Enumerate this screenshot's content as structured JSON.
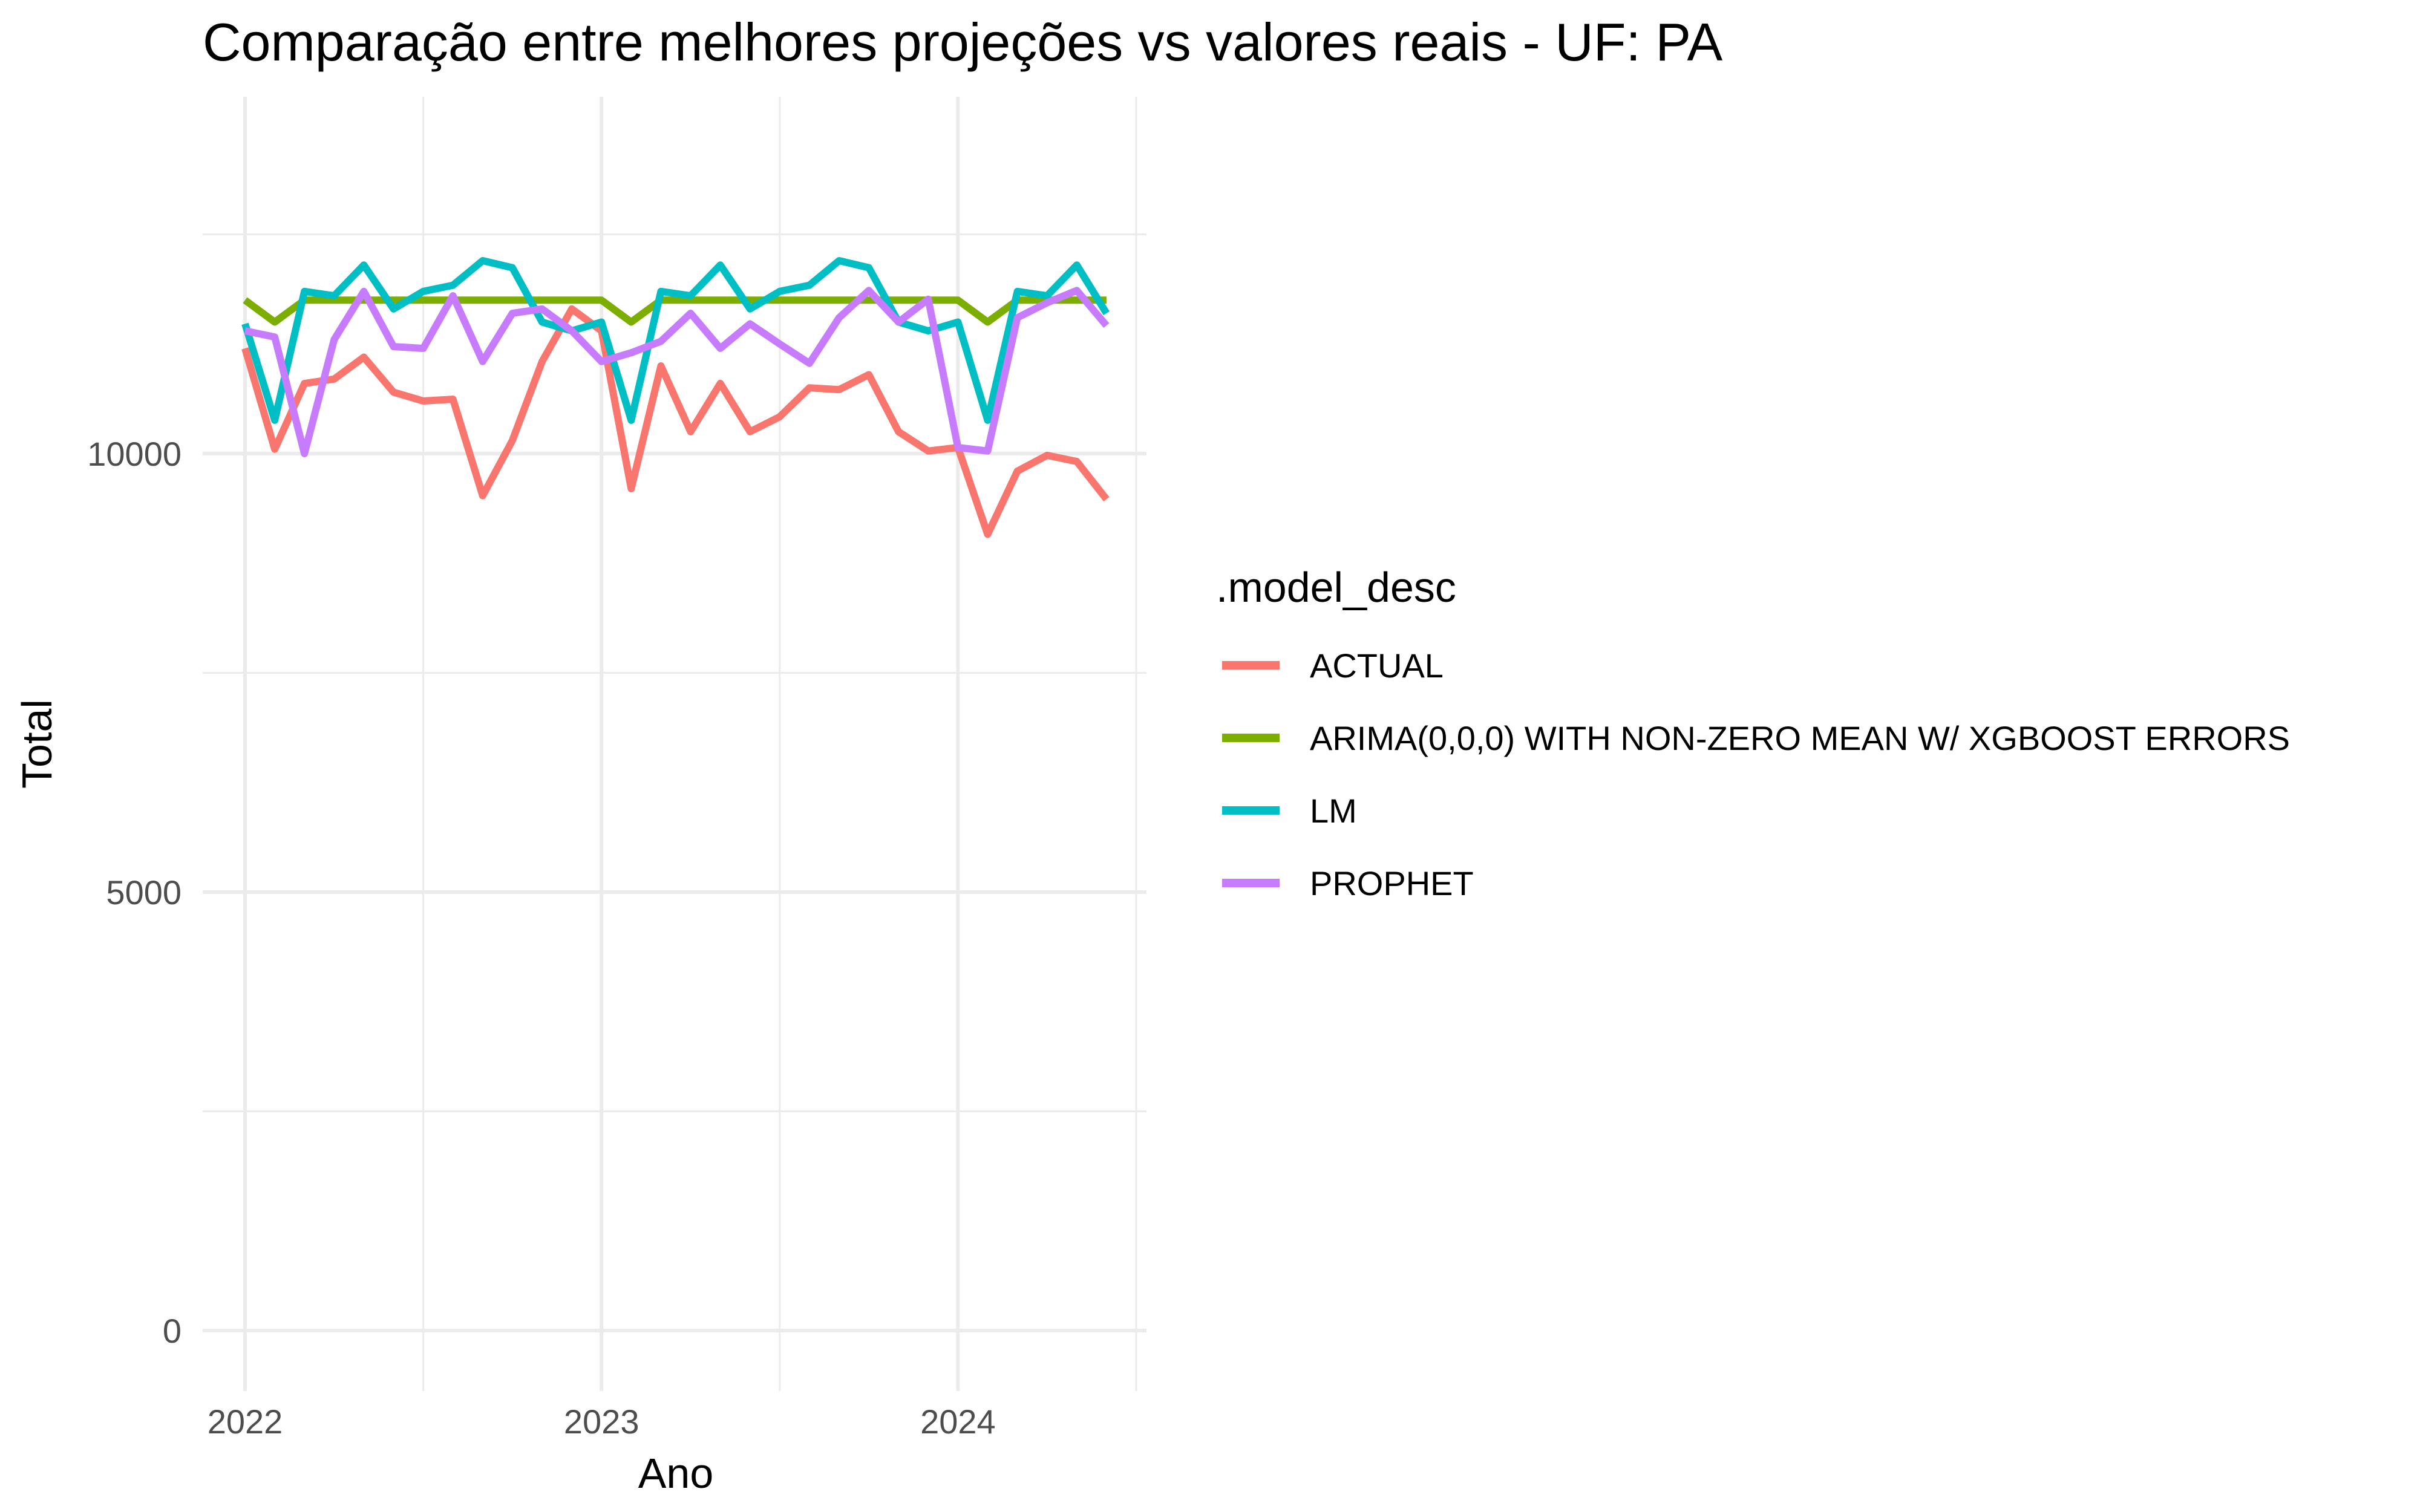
{
  "chart_data": {
    "type": "line",
    "title": "Comparação entre melhores projeções vs valores reais - UF: PA",
    "xlabel": "Ano",
    "ylabel": "Total",
    "x_ticks": [
      "2022",
      "2023",
      "2024"
    ],
    "y_ticks": [
      0,
      5000,
      10000
    ],
    "ylim": [
      -500,
      14000
    ],
    "grid": true,
    "legend": {
      "title": ".model_desc",
      "position": "right"
    },
    "x": [
      "2022-01",
      "2022-02",
      "2022-03",
      "2022-04",
      "2022-05",
      "2022-06",
      "2022-07",
      "2022-08",
      "2022-09",
      "2022-10",
      "2022-11",
      "2022-12",
      "2023-01",
      "2023-02",
      "2023-03",
      "2023-04",
      "2023-05",
      "2023-06",
      "2023-07",
      "2023-08",
      "2023-09",
      "2023-10",
      "2023-11",
      "2023-12",
      "2024-01",
      "2024-02",
      "2024-03",
      "2024-04",
      "2024-05",
      "2024-06"
    ],
    "series": [
      {
        "name": "ACTUAL",
        "color": "#F8766D",
        "values": [
          11200,
          10050,
          10800,
          10850,
          11100,
          10700,
          10600,
          10620,
          9520,
          10150,
          11050,
          11650,
          11400,
          9600,
          11000,
          10250,
          10800,
          10250,
          10420,
          10750,
          10730,
          10900,
          10250,
          10030,
          10070,
          9080,
          9800,
          9980,
          9910,
          9480
        ]
      },
      {
        "name": "ARIMA(0,0,0) WITH NON-ZERO MEAN W/ XGBOOST ERRORS",
        "color": "#7CAE00",
        "values": [
          11750,
          11500,
          11750,
          11750,
          11750,
          11750,
          11750,
          11750,
          11750,
          11750,
          11750,
          11750,
          11750,
          11500,
          11750,
          11750,
          11750,
          11750,
          11750,
          11750,
          11750,
          11750,
          11750,
          11750,
          11750,
          11500,
          11750,
          11750,
          11750,
          11750
        ]
      },
      {
        "name": "LM",
        "color": "#00BFC4",
        "values": [
          11480,
          10380,
          11850,
          11800,
          12150,
          11650,
          11850,
          11920,
          12200,
          12120,
          11500,
          11400,
          11500,
          10380,
          11850,
          11800,
          12150,
          11650,
          11850,
          11920,
          12200,
          12120,
          11500,
          11400,
          11500,
          10380,
          11850,
          11800,
          12150,
          11600
        ]
      },
      {
        "name": "PROPHET",
        "color": "#C77CFF",
        "values": [
          11400,
          11330,
          10000,
          11300,
          11850,
          11220,
          11200,
          11800,
          11050,
          11600,
          11650,
          11400,
          11050,
          11150,
          11280,
          11600,
          11200,
          11480,
          11250,
          11030,
          11550,
          11860,
          11500,
          11760,
          10070,
          10030,
          11550,
          11720,
          11860,
          11460
        ]
      }
    ]
  }
}
